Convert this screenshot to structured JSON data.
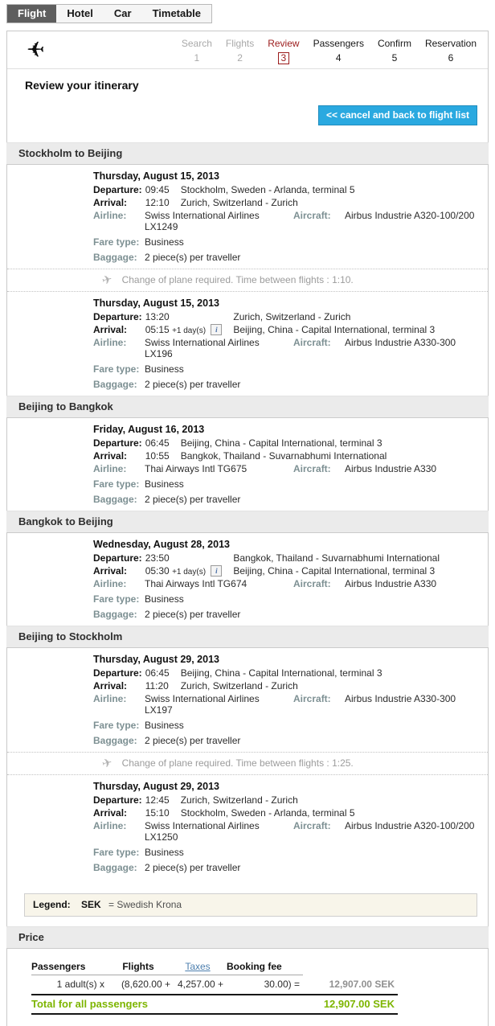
{
  "tabs": [
    {
      "label": "Flight",
      "active": true
    },
    {
      "label": "Hotel",
      "active": false
    },
    {
      "label": "Car",
      "active": false
    },
    {
      "label": "Timetable",
      "active": false
    }
  ],
  "steps": [
    {
      "label": "Search",
      "number": "1",
      "state": "past"
    },
    {
      "label": "Flights",
      "number": "2",
      "state": "past"
    },
    {
      "label": "Review",
      "number": "3",
      "state": "current"
    },
    {
      "label": "Passengers",
      "number": "4",
      "state": "future"
    },
    {
      "label": "Confirm",
      "number": "5",
      "state": "future"
    },
    {
      "label": "Reservation",
      "number": "6",
      "state": "future"
    }
  ],
  "icons": {
    "plane": "✈",
    "info": "i"
  },
  "page_title": "Review your itinerary",
  "cancel_button_label": "<< cancel and back to flight list",
  "field_labels": {
    "departure": "Departure:",
    "arrival": "Arrival:",
    "airline": "Airline:",
    "aircraft": "Aircraft:",
    "fare_type": "Fare type:",
    "baggage": "Baggage:"
  },
  "sections": [
    {
      "title": "Stockholm to Beijing",
      "change_note": "Change of plane required. Time between flights : 1:10.",
      "segments": [
        {
          "date": "Thursday, August 15, 2013",
          "departure_time": "09:45",
          "departure_location": "Stockholm, Sweden - Arlanda, terminal 5",
          "arrival_time": "12:10",
          "arrival_location": "Zurich, Switzerland - Zurich",
          "airline": "Swiss International Airlines LX1249",
          "aircraft": "Airbus Industrie A320-100/200",
          "fare_type": "Business",
          "baggage": "2 piece(s) per traveller"
        },
        {
          "date": "Thursday, August 15, 2013",
          "departure_time": "13:20",
          "departure_location": "Zurich, Switzerland - Zurich",
          "arrival_time": "05:15",
          "arrival_note": "+1 day(s)",
          "arrival_location": "Beijing, China - Capital International, terminal 3",
          "airline": "Swiss International Airlines LX196",
          "aircraft": "Airbus Industrie A330-300",
          "fare_type": "Business",
          "baggage": "2 piece(s) per traveller"
        }
      ]
    },
    {
      "title": "Beijing to Bangkok",
      "segments": [
        {
          "date": "Friday, August 16, 2013",
          "departure_time": "06:45",
          "departure_location": "Beijing, China - Capital International, terminal 3",
          "arrival_time": "10:55",
          "arrival_location": "Bangkok, Thailand - Suvarnabhumi International",
          "airline": "Thai Airways Intl TG675",
          "aircraft": "Airbus Industrie A330",
          "fare_type": "Business",
          "baggage": "2 piece(s) per traveller"
        }
      ]
    },
    {
      "title": "Bangkok to Beijing",
      "segments": [
        {
          "date": "Wednesday, August 28, 2013",
          "departure_time": "23:50",
          "departure_location": "Bangkok, Thailand - Suvarnabhumi International",
          "arrival_time": "05:30",
          "arrival_note": "+1 day(s)",
          "arrival_location": "Beijing, China - Capital International, terminal 3",
          "airline": "Thai Airways Intl TG674",
          "aircraft": "Airbus Industrie A330",
          "fare_type": "Business",
          "baggage": "2 piece(s) per traveller"
        }
      ]
    },
    {
      "title": "Beijing to Stockholm",
      "change_note": "Change of plane required. Time between flights : 1:25.",
      "segments": [
        {
          "date": "Thursday, August 29, 2013",
          "departure_time": "06:45",
          "departure_location": "Beijing, China - Capital International, terminal 3",
          "arrival_time": "11:20",
          "arrival_location": "Zurich, Switzerland - Zurich",
          "airline": "Swiss International Airlines LX197",
          "aircraft": "Airbus Industrie A330-300",
          "fare_type": "Business",
          "baggage": "2 piece(s) per traveller"
        },
        {
          "date": "Thursday, August 29, 2013",
          "departure_time": "12:45",
          "departure_location": "Zurich, Switzerland - Zurich",
          "arrival_time": "15:10",
          "arrival_location": "Stockholm, Sweden - Arlanda, terminal 5",
          "airline": "Swiss International Airlines LX1250",
          "aircraft": "Airbus Industrie A320-100/200",
          "fare_type": "Business",
          "baggage": "2 piece(s) per traveller"
        }
      ]
    }
  ],
  "legend": {
    "label": "Legend:",
    "code": "SEK",
    "desc": "= Swedish Krona"
  },
  "price": {
    "title": "Price",
    "headers": [
      "Passengers",
      "Flights",
      "Taxes",
      "Booking fee"
    ],
    "row": {
      "passengers": "1 adult(s) x",
      "flights": "(8,620.00 +",
      "taxes": "4,257.00 +",
      "booking_fee": "30.00) =",
      "total": "12,907.00 SEK"
    },
    "total_label": "Total for all passengers",
    "total_value": "12,907.00 SEK"
  },
  "colors": {
    "accent_blue": "#2aa9e0",
    "total_green": "#7db500",
    "step_current_red": "#9b1b1b",
    "label_gray": "#7d9093"
  }
}
